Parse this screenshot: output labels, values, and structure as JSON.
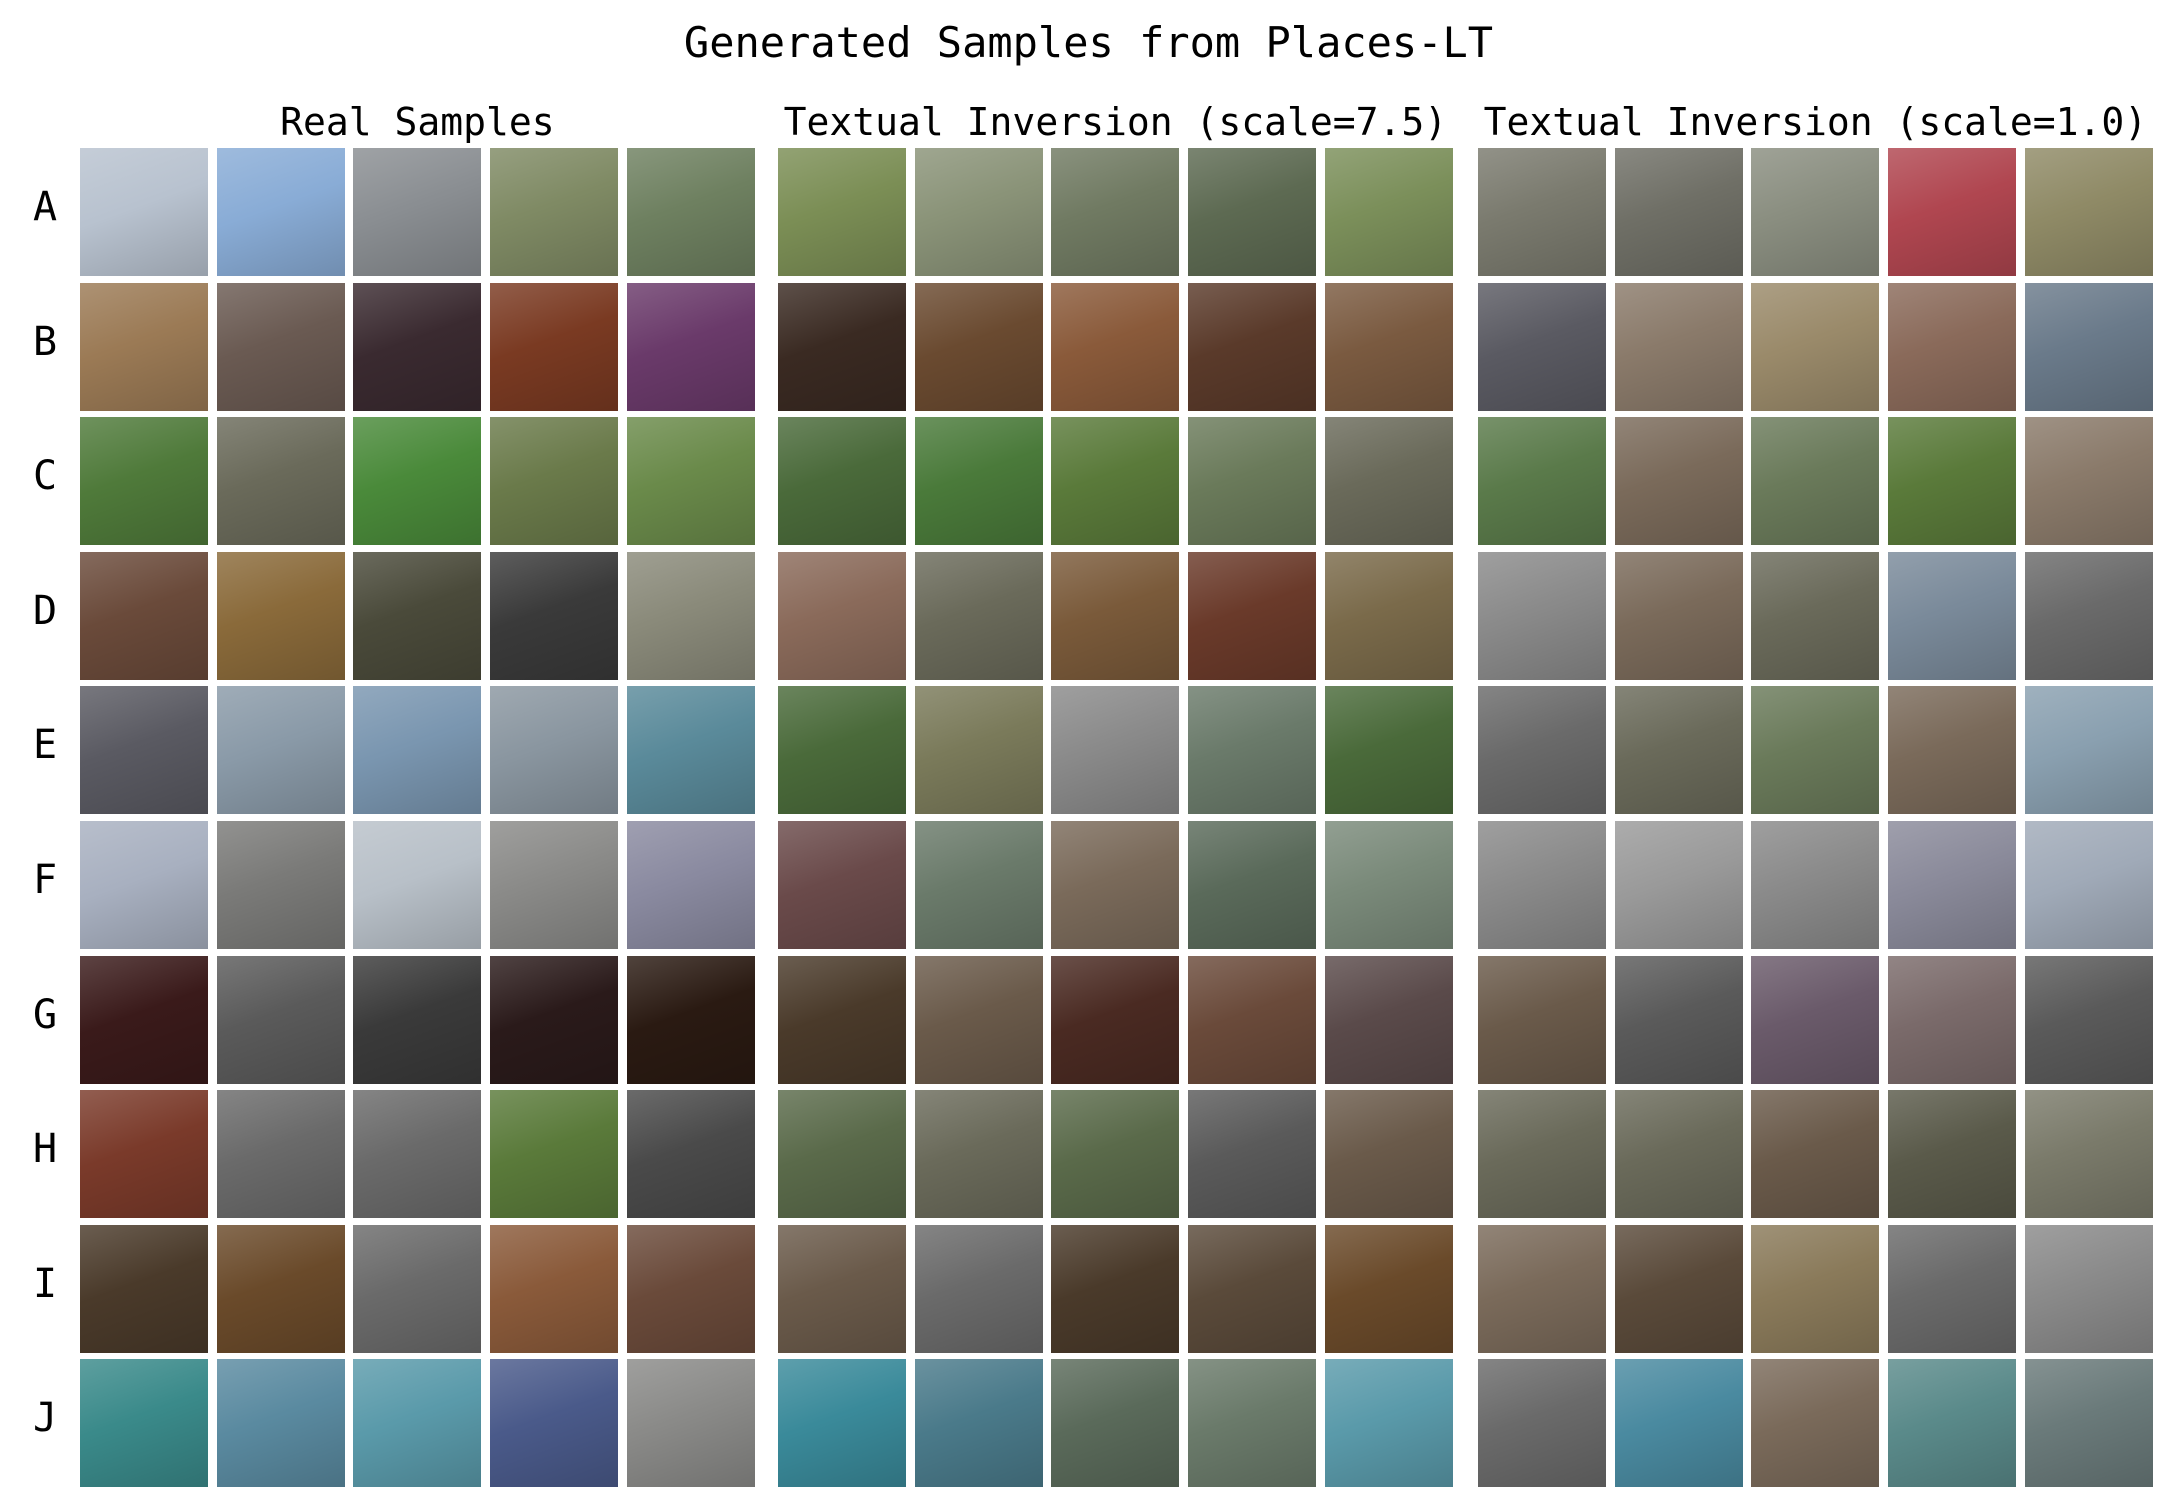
{
  "title": "Generated Samples from Places-LT",
  "groups": [
    {
      "title": "Real Samples"
    },
    {
      "title": "Textual Inversion (scale=7.5)"
    },
    {
      "title": "Textual Inversion (scale=1.0)"
    }
  ],
  "rows": [
    {
      "label": "A",
      "colors": [
        [
          "#b8c2cf",
          "#89acd6",
          "#8a8e92",
          "#7f8a64",
          "#6e8060"
        ],
        [
          "#7b8e55",
          "#8a9378",
          "#707a62",
          "#5d6a52",
          "#7b8f5a"
        ],
        [
          "#7a7a6e",
          "#6f6f66",
          "#8a8e80",
          "#b04650",
          "#8f8a66"
        ]
      ]
    },
    {
      "label": "B",
      "colors": [
        [
          "#9b7a55",
          "#6a5a52",
          "#3a2a30",
          "#7a3a22",
          "#6a3a6a"
        ],
        [
          "#3a2a22",
          "#6a4a30",
          "#8a5a3a",
          "#5a3a2a",
          "#7a5a40"
        ],
        [
          "#5a5a62",
          "#8a7a6a",
          "#9a8a6a",
          "#8a6a5a",
          "#6a7a8a"
        ]
      ]
    },
    {
      "label": "C",
      "colors": [
        [
          "#4f7a3a",
          "#6a6a5a",
          "#4a8a3a",
          "#6a7a4a",
          "#6a8a4a"
        ],
        [
          "#4a6a3a",
          "#4a7a3a",
          "#5a7a3a",
          "#6a7a5a",
          "#6a6a5a"
        ],
        [
          "#5a7a4a",
          "#7a6a5a",
          "#6a7a5a",
          "#5a7a3a",
          "#8a7a6a"
        ]
      ]
    },
    {
      "label": "D",
      "colors": [
        [
          "#6a4a3a",
          "#8a6a3a",
          "#4a4a3a",
          "#3a3a3a",
          "#8a8a7a"
        ],
        [
          "#8a6a5a",
          "#6a6a5a",
          "#7a5a3a",
          "#6a3a2a",
          "#7a6a4a"
        ],
        [
          "#8a8a8a",
          "#7a6a5a",
          "#6a6a5a",
          "#7a8a9a",
          "#6a6a6a"
        ]
      ]
    },
    {
      "label": "E",
      "colors": [
        [
          "#5a5a62",
          "#8a9aa8",
          "#7a96b0",
          "#8a96a0",
          "#5a8a9a"
        ],
        [
          "#4a6a3a",
          "#7a7a5a",
          "#8a8a8a",
          "#6a7a6a",
          "#4a6a3a"
        ],
        [
          "#6a6a6a",
          "#6a6a5a",
          "#6a7a5a",
          "#7a6a5a",
          "#8aa0b0"
        ]
      ]
    },
    {
      "label": "F",
      "colors": [
        [
          "#a8b0c0",
          "#7a7a78",
          "#b8c0c8",
          "#8a8a88",
          "#8a8aa0"
        ],
        [
          "#6a4a4a",
          "#6a7a6a",
          "#7a6a5a",
          "#5a6a5a",
          "#7a8a7a"
        ],
        [
          "#8a8a8a",
          "#9a9a9a",
          "#8a8a8a",
          "#8a8a9a",
          "#a0aab8"
        ]
      ]
    },
    {
      "label": "G",
      "colors": [
        [
          "#3a1a1a",
          "#5a5a5a",
          "#3a3a3a",
          "#2a1a1a",
          "#2a1a12"
        ],
        [
          "#4a3a2a",
          "#6a5a4a",
          "#4a2a22",
          "#6a4a3a",
          "#5a4a4a"
        ],
        [
          "#6a5a4a",
          "#5a5a5a",
          "#6a5a6a",
          "#7a6a6a",
          "#5a5a5a"
        ]
      ]
    },
    {
      "label": "H",
      "colors": [
        [
          "#7a3a2a",
          "#6a6a6a",
          "#6a6a6a",
          "#5a7a3a",
          "#4a4a4a"
        ],
        [
          "#5a6a4a",
          "#6a6a5a",
          "#5a6a4a",
          "#5a5a5a",
          "#6a5a4a"
        ],
        [
          "#6a6a5a",
          "#6a6a5a",
          "#6a5a4a",
          "#5a5a4a",
          "#7a7a6a"
        ]
      ]
    },
    {
      "label": "I",
      "colors": [
        [
          "#4a3a2a",
          "#6a4a2a",
          "#6a6a6a",
          "#8a5a3a",
          "#6a4a3a"
        ],
        [
          "#6a5a4a",
          "#6a6a6a",
          "#4a3a2a",
          "#5a4a3a",
          "#6a4a2a"
        ],
        [
          "#7a6a5a",
          "#5a4a3a",
          "#8a7a5a",
          "#6a6a6a",
          "#8a8a8a"
        ]
      ]
    },
    {
      "label": "J",
      "colors": [
        [
          "#3a8a8a",
          "#5a8aa0",
          "#5a9aaa",
          "#4a5a8a",
          "#8a8a88"
        ],
        [
          "#3a8a9a",
          "#4a7a8a",
          "#5a6a5a",
          "#6a7a6a",
          "#5a9aaa"
        ],
        [
          "#6a6a6a",
          "#4a8aa0",
          "#7a6a5a",
          "#5a8a8a",
          "#6a7a7a"
        ]
      ]
    }
  ]
}
